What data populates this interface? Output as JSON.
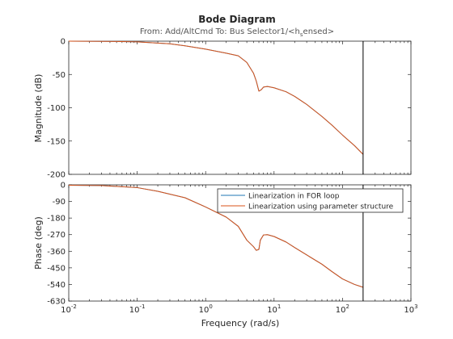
{
  "title": "Bode Diagram",
  "subtitle": "From: Add/AltCmd  To: Bus Selector1/<h_sensed>",
  "subtitle_parts": {
    "prefix": "From: Add/AltCmd  To: Bus Selector1/<h",
    "subscript": "s",
    "suffix": "ensed>"
  },
  "xlabel": "Frequency  (rad/s)",
  "colors": {
    "series1": "#1f77b4",
    "series2": "#d95319",
    "axis": "#262626",
    "marker_line": "#000000"
  },
  "chart_data": [
    {
      "type": "line",
      "title": "Bode Diagram",
      "xlabel": "",
      "ylabel": "Magnitude (dB)",
      "xscale": "log",
      "xlim": [
        0.01,
        1000
      ],
      "ylim": [
        -200,
        0
      ],
      "yticks": [
        0,
        -50,
        -100,
        -150,
        -200
      ],
      "ytick_labels": [
        "0",
        "-50",
        "-100",
        "-150",
        "-200"
      ],
      "vertical_line_x": 200,
      "series": [
        {
          "name": "Linearization in FOR loop",
          "x": [
            0.01,
            0.05,
            0.1,
            0.3,
            0.5,
            1,
            2,
            3,
            4,
            5,
            5.5,
            6,
            6.5,
            7,
            8,
            10,
            15,
            20,
            30,
            50,
            70,
            100,
            150,
            200
          ],
          "y": [
            0,
            -0.5,
            -1,
            -4,
            -7,
            -12,
            -18,
            -22,
            -32,
            -48,
            -60,
            -75,
            -73,
            -69,
            -68,
            -70,
            -76,
            -83,
            -95,
            -113,
            -126,
            -141,
            -157,
            -170
          ]
        },
        {
          "name": "Linearization using parameter structure",
          "x": [
            0.01,
            0.05,
            0.1,
            0.3,
            0.5,
            1,
            2,
            3,
            4,
            5,
            5.5,
            6,
            6.5,
            7,
            8,
            10,
            15,
            20,
            30,
            50,
            70,
            100,
            150,
            200
          ],
          "y": [
            0,
            -0.5,
            -1,
            -4,
            -7,
            -12,
            -18,
            -22,
            -32,
            -48,
            -60,
            -75,
            -73,
            -69,
            -68,
            -70,
            -76,
            -83,
            -95,
            -113,
            -126,
            -141,
            -157,
            -170
          ]
        }
      ]
    },
    {
      "type": "line",
      "xlabel": "Frequency  (rad/s)",
      "ylabel": "Phase (deg)",
      "xscale": "log",
      "xlim": [
        0.01,
        1000
      ],
      "xtick_labels": [
        "10-2",
        "10-1",
        "100",
        "101",
        "102",
        "103"
      ],
      "ylim": [
        -630,
        0
      ],
      "yticks": [
        0,
        -90,
        -180,
        -270,
        -360,
        -450,
        -540,
        -630
      ],
      "ytick_labels": [
        "0",
        "-90",
        "-180",
        "-270",
        "-360",
        "-450",
        "-540",
        "-630"
      ],
      "vertical_line_x": 200,
      "legend": {
        "placement": "top-right",
        "entries": [
          "Linearization in FOR loop",
          "Linearization using parameter structure"
        ]
      },
      "series": [
        {
          "name": "Linearization in FOR loop",
          "x": [
            0.01,
            0.03,
            0.1,
            0.2,
            0.5,
            1,
            2,
            3,
            4,
            5,
            5.5,
            6,
            6.3,
            7,
            8,
            10,
            15,
            20,
            30,
            50,
            70,
            100,
            150,
            200
          ],
          "y": [
            -2,
            -4,
            -15,
            -35,
            -70,
            -120,
            -175,
            -225,
            -300,
            -335,
            -355,
            -350,
            -300,
            -272,
            -270,
            -280,
            -310,
            -340,
            -380,
            -430,
            -470,
            -510,
            -540,
            -555
          ]
        },
        {
          "name": "Linearization using parameter structure",
          "x": [
            0.01,
            0.03,
            0.1,
            0.2,
            0.5,
            1,
            2,
            3,
            4,
            5,
            5.5,
            6,
            6.3,
            7,
            8,
            10,
            15,
            20,
            30,
            50,
            70,
            100,
            150,
            200
          ],
          "y": [
            -2,
            -4,
            -15,
            -35,
            -70,
            -120,
            -175,
            -225,
            -300,
            -335,
            -355,
            -350,
            -300,
            -272,
            -270,
            -280,
            -310,
            -340,
            -380,
            -430,
            -470,
            -510,
            -540,
            -555
          ]
        }
      ]
    }
  ]
}
